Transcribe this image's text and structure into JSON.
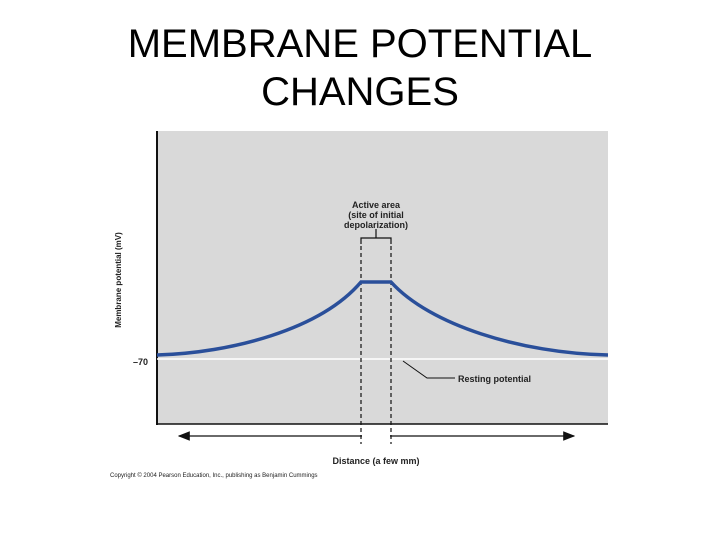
{
  "title": {
    "line1": "MEMBRANE POTENTIAL",
    "line2": "CHANGES"
  },
  "figure": {
    "ylabel": "Membrane potential (mV)",
    "resting_tick": "–70",
    "active_area_label": [
      "Active area",
      "(site of initial",
      "depolarization)"
    ],
    "resting_potential_label": "Resting potential",
    "xlabel": "Distance (a few mm)",
    "copyright": "Copyright © 2004 Pearson Education, Inc., publishing as Benjamin Cummings",
    "colors": {
      "plot_background": "#d9d9d9",
      "curve": "#2a4f9a",
      "axis": "#111111",
      "resting_line": "#ffffff"
    }
  }
}
